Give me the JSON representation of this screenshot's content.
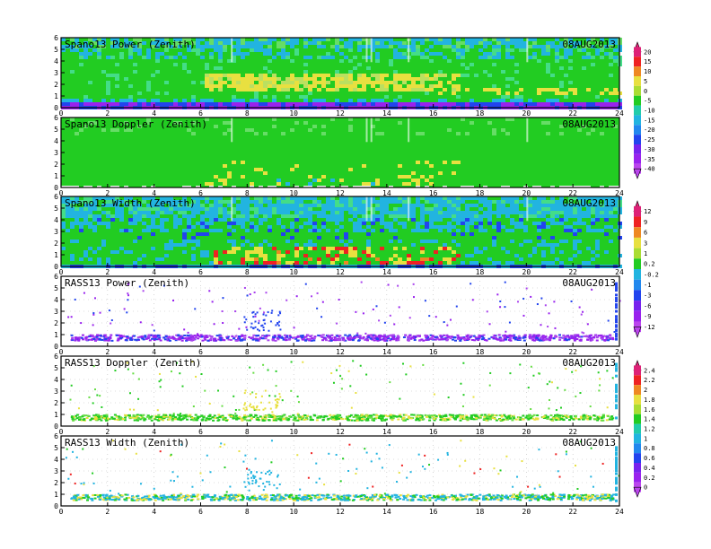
{
  "chart_data": [
    {
      "type": "heatmap",
      "title": "Spano13 Power (Zenith)",
      "date": "08AUG2013",
      "xlim": [
        0,
        24
      ],
      "ylim": [
        0,
        6
      ],
      "x_ticks": [
        "0",
        "2",
        "4",
        "6",
        "8",
        "10",
        "12",
        "14",
        "16",
        "18",
        "20",
        "22",
        "24"
      ],
      "y_ticks": [
        "0",
        "1",
        "2",
        "3",
        "4",
        "5",
        "6"
      ],
      "colorbar": [
        "20",
        "15",
        "10",
        "5",
        "0",
        "-5",
        "-10",
        "-15",
        "-20",
        "-25",
        "-30",
        "-35",
        "-40"
      ],
      "grid": false
    },
    {
      "type": "heatmap",
      "title": "Spano13 Doppler (Zenith)",
      "date": "08AUG2013",
      "xlim": [
        0,
        24
      ],
      "ylim": [
        0,
        6
      ],
      "x_ticks": [
        "0",
        "2",
        "4",
        "6",
        "8",
        "10",
        "12",
        "14",
        "16",
        "18",
        "20",
        "22",
        "24"
      ],
      "y_ticks": [
        "0",
        "1",
        "2",
        "3",
        "4",
        "5",
        "6"
      ],
      "grid": false
    },
    {
      "type": "heatmap",
      "title": "Spano13 Width (Zenith)",
      "date": "08AUG2013",
      "xlim": [
        0,
        24
      ],
      "ylim": [
        0,
        6
      ],
      "x_ticks": [
        "0",
        "2",
        "4",
        "6",
        "8",
        "10",
        "12",
        "14",
        "16",
        "18",
        "20",
        "22",
        "24"
      ],
      "y_ticks": [
        "0",
        "1",
        "2",
        "3",
        "4",
        "5",
        "6"
      ],
      "colorbar": [
        "12",
        "9",
        "6",
        "3",
        "1",
        "0.2",
        "-0.2",
        "-1",
        "-3",
        "-6",
        "-9",
        "-12"
      ],
      "grid": false
    },
    {
      "type": "scatter",
      "title": "RASS13 Power (Zenith)",
      "date": "08AUG2013",
      "xlim": [
        0,
        24
      ],
      "ylim": [
        0,
        6
      ],
      "x_ticks": [
        "0",
        "2",
        "4",
        "6",
        "8",
        "10",
        "12",
        "14",
        "16",
        "18",
        "20",
        "22",
        "24"
      ],
      "y_ticks": [
        "0",
        "1",
        "2",
        "3",
        "4",
        "5",
        "6"
      ],
      "grid": true
    },
    {
      "type": "scatter",
      "title": "RASS13 Doppler (Zenith)",
      "date": "08AUG2013",
      "xlim": [
        0,
        24
      ],
      "ylim": [
        0,
        6
      ],
      "x_ticks": [
        "0",
        "2",
        "4",
        "6",
        "8",
        "10",
        "12",
        "14",
        "16",
        "18",
        "20",
        "22",
        "24"
      ],
      "y_ticks": [
        "0",
        "1",
        "2",
        "3",
        "4",
        "5",
        "6"
      ],
      "colorbar": [
        "2.4",
        "2.2",
        "2",
        "1.8",
        "1.6",
        "1.4",
        "1.2",
        "1",
        "0.8",
        "0.6",
        "0.4",
        "0.2",
        "0"
      ],
      "grid": true
    },
    {
      "type": "scatter",
      "title": "RASS13 Width (Zenith)",
      "date": "08AUG2013",
      "xlim": [
        0,
        24
      ],
      "ylim": [
        0,
        6
      ],
      "x_ticks": [
        "0",
        "2",
        "4",
        "6",
        "8",
        "10",
        "12",
        "14",
        "16",
        "18",
        "20",
        "22",
        "24"
      ],
      "y_ticks": [
        "0",
        "1",
        "2",
        "3",
        "4",
        "5",
        "6"
      ],
      "grid": true
    }
  ],
  "colors": {
    "green": "#22cc22",
    "cyan": "#22b4e0",
    "blue": "#2244ee",
    "purple": "#9922ee",
    "yellow": "#e8e040",
    "red": "#ee2222"
  }
}
